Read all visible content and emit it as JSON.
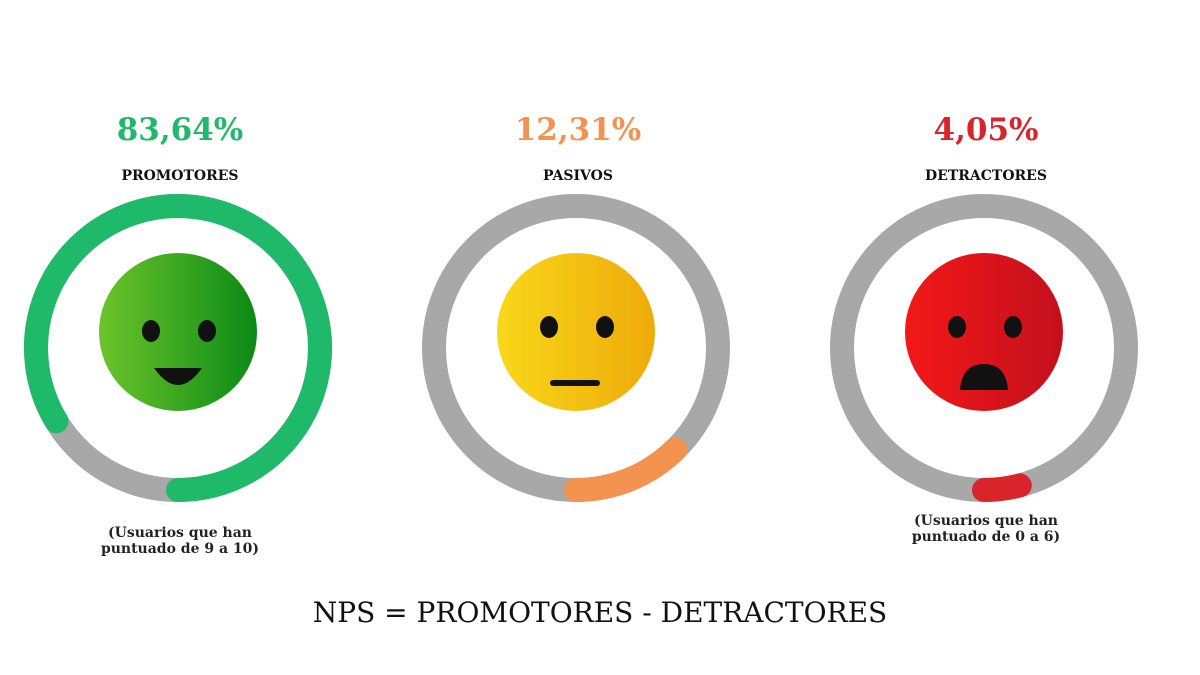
{
  "chart_data": {
    "type": "gauge",
    "categories": [
      {
        "name": "PROMOTORES",
        "percent_label": "83,64%",
        "value": 83.64,
        "color": "#1fb96a",
        "face": "happy",
        "note_line1": "(Usuarios que han",
        "note_line2": "puntuado de 9 a 10)"
      },
      {
        "name": "PASIVOS",
        "percent_label": "12,31%",
        "value": 12.31,
        "color": "#f4934f",
        "face": "neutral",
        "note_line1": "",
        "note_line2": ""
      },
      {
        "name": "DETRACTORES",
        "percent_label": "4,05%",
        "value": 4.05,
        "color": "#d8242a",
        "face": "sad",
        "note_line1": "(Usuarios que han",
        "note_line2": "puntuado de 0 a 6)"
      }
    ],
    "track_color": "#a8a8a8",
    "formula": "NPS = PROMOTORES - DETRACTORES"
  }
}
